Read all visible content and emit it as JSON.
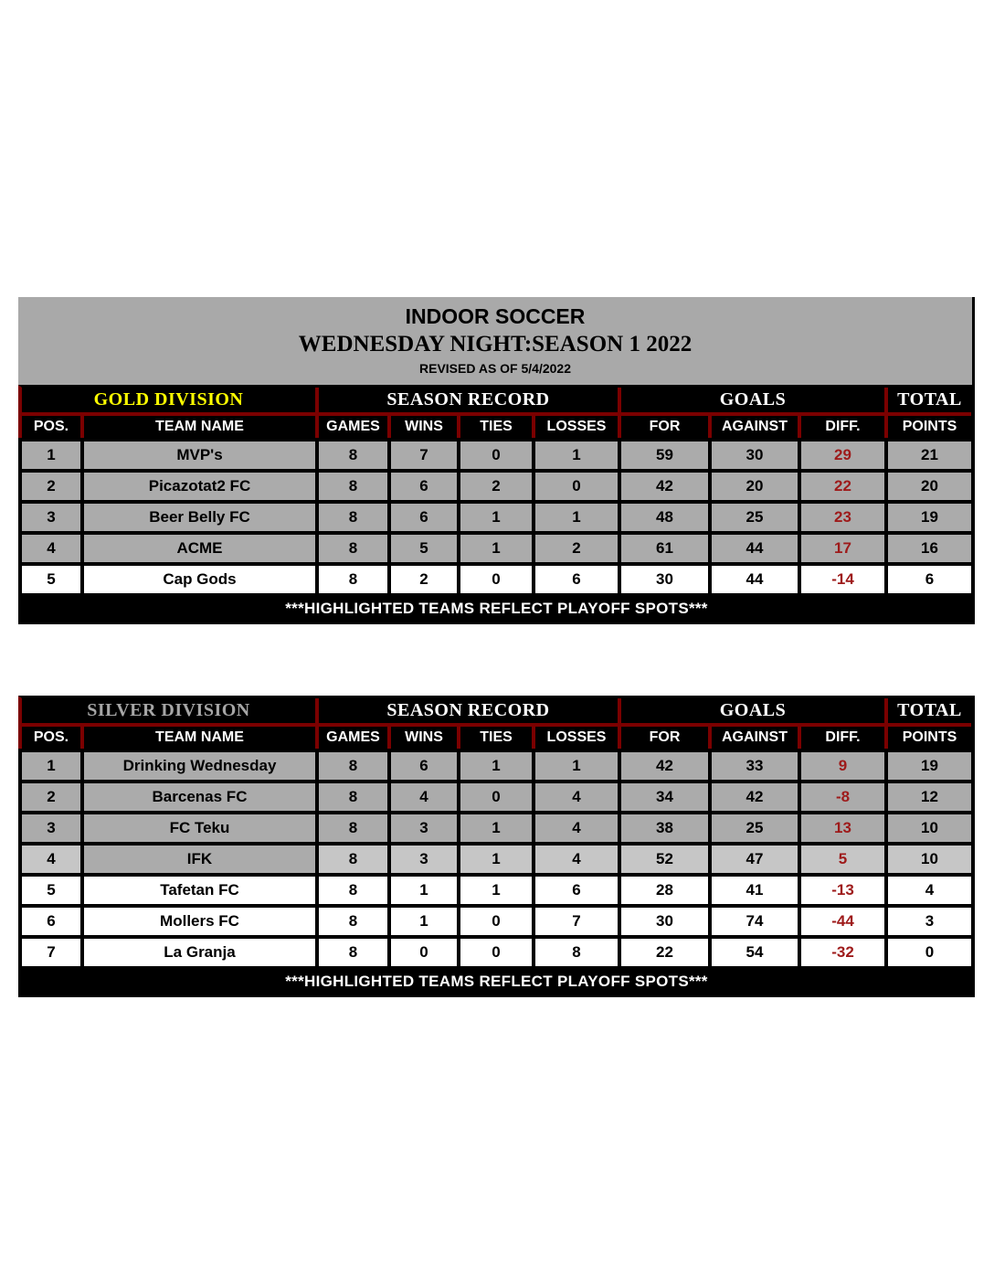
{
  "page": {
    "title": "INDOOR SOCCER",
    "subtitle": "WEDNESDAY NIGHT:SEASON 1 2022",
    "revised": "REVISED AS OF 5/4/2022"
  },
  "group_headers": {
    "season_record": "SEASON RECORD",
    "goals": "GOALS",
    "total": "TOTAL"
  },
  "columns": [
    "POS.",
    "TEAM NAME",
    "GAMES",
    "WINS",
    "TIES",
    "LOSSES",
    "FOR",
    "AGAINST",
    "DIFF.",
    "POINTS"
  ],
  "footer_note": "***HIGHLIGHTED TEAMS REFLECT PLAYOFF SPOTS***",
  "colors": {
    "highlight_gray": "#ABABAB",
    "partial_highlight_gray": "#C6C6C6",
    "plain_white": "#FFFFFF",
    "header_border_red": "#7B0000",
    "diff_text_red": "#9E1A1A",
    "gold_division_text": "#FFFF00",
    "silver_division_text": "#A6A6A6"
  },
  "tables": [
    {
      "division": "GOLD DIVISION",
      "rows": [
        {
          "pos": "1",
          "team": "MVP's",
          "games": "8",
          "wins": "7",
          "ties": "0",
          "losses": "1",
          "for": "59",
          "against": "30",
          "diff": "29",
          "points": "21",
          "highlight": "gray"
        },
        {
          "pos": "2",
          "team": "Picazotat2 FC",
          "games": "8",
          "wins": "6",
          "ties": "2",
          "losses": "0",
          "for": "42",
          "against": "20",
          "diff": "22",
          "points": "20",
          "highlight": "gray"
        },
        {
          "pos": "3",
          "team": "Beer Belly FC",
          "games": "8",
          "wins": "6",
          "ties": "1",
          "losses": "1",
          "for": "48",
          "against": "25",
          "diff": "23",
          "points": "19",
          "highlight": "gray"
        },
        {
          "pos": "4",
          "team": "ACME",
          "games": "8",
          "wins": "5",
          "ties": "1",
          "losses": "2",
          "for": "61",
          "against": "44",
          "diff": "17",
          "points": "16",
          "highlight": "gray"
        },
        {
          "pos": "5",
          "team": "Cap Gods",
          "games": "8",
          "wins": "2",
          "ties": "0",
          "losses": "6",
          "for": "30",
          "against": "44",
          "diff": "-14",
          "points": "6",
          "highlight": "white"
        }
      ]
    },
    {
      "division": "SILVER DIVISION",
      "rows": [
        {
          "pos": "1",
          "team": "Drinking Wednesday",
          "games": "8",
          "wins": "6",
          "ties": "1",
          "losses": "1",
          "for": "42",
          "against": "33",
          "diff": "9",
          "points": "19",
          "highlight": "gray"
        },
        {
          "pos": "2",
          "team": "Barcenas FC",
          "games": "8",
          "wins": "4",
          "ties": "0",
          "losses": "4",
          "for": "34",
          "against": "42",
          "diff": "-8",
          "points": "12",
          "highlight": "gray"
        },
        {
          "pos": "3",
          "team": "FC Teku",
          "games": "8",
          "wins": "3",
          "ties": "1",
          "losses": "4",
          "for": "38",
          "against": "25",
          "diff": "13",
          "points": "10",
          "highlight": "gray"
        },
        {
          "pos": "4",
          "team": "IFK",
          "games": "8",
          "wins": "3",
          "ties": "1",
          "losses": "4",
          "for": "52",
          "against": "47",
          "diff": "5",
          "points": "10",
          "highlight": "partial"
        },
        {
          "pos": "5",
          "team": "Tafetan FC",
          "games": "8",
          "wins": "1",
          "ties": "1",
          "losses": "6",
          "for": "28",
          "against": "41",
          "diff": "-13",
          "points": "4",
          "highlight": "white"
        },
        {
          "pos": "6",
          "team": "Mollers FC",
          "games": "8",
          "wins": "1",
          "ties": "0",
          "losses": "7",
          "for": "30",
          "against": "74",
          "diff": "-44",
          "points": "3",
          "highlight": "white"
        },
        {
          "pos": "7",
          "team": "La Granja",
          "games": "8",
          "wins": "0",
          "ties": "0",
          "losses": "8",
          "for": "22",
          "against": "54",
          "diff": "-32",
          "points": "0",
          "highlight": "white"
        }
      ]
    }
  ]
}
